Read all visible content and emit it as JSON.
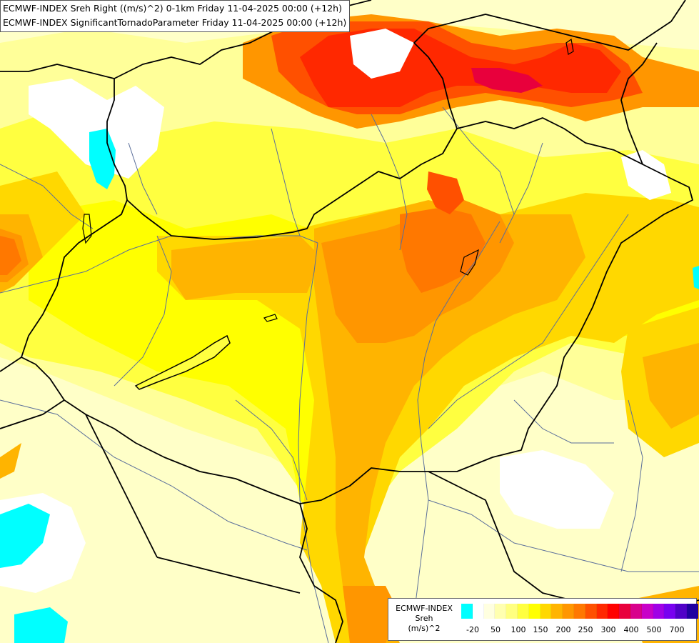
{
  "title_lines": [
    "ECMWF-INDEX Sreh Right ((m/s)^2) 0-1km Friday 11-04-2025 00:00 (+12h)",
    "ECMWF-INDEX SignificantTornadoParameter Friday 11-04-2025 00:00 (+12h)"
  ],
  "legend": {
    "title_lines": [
      "ECMWF-INDEX",
      "Sreh",
      "(m/s)^2"
    ],
    "colors": [
      "#00ffff",
      "#ffffff",
      "#ffffe0",
      "#ffffb0",
      "#ffff80",
      "#ffff40",
      "#ffff00",
      "#ffd800",
      "#ffb400",
      "#ff9600",
      "#ff7800",
      "#ff5000",
      "#ff2800",
      "#ff0000",
      "#e8003c",
      "#d8008c",
      "#c800c8",
      "#a000e6",
      "#7800f0",
      "#5000c8",
      "#2000a0"
    ],
    "tick_labels": [
      "-20",
      "50",
      "100",
      "150",
      "200",
      "250",
      "300",
      "400",
      "500",
      "700"
    ]
  },
  "colors": {
    "background": "#ffffc8",
    "border_lines": "#000000",
    "rivers": "#5a6e9a",
    "lakes": "#00ffff"
  }
}
